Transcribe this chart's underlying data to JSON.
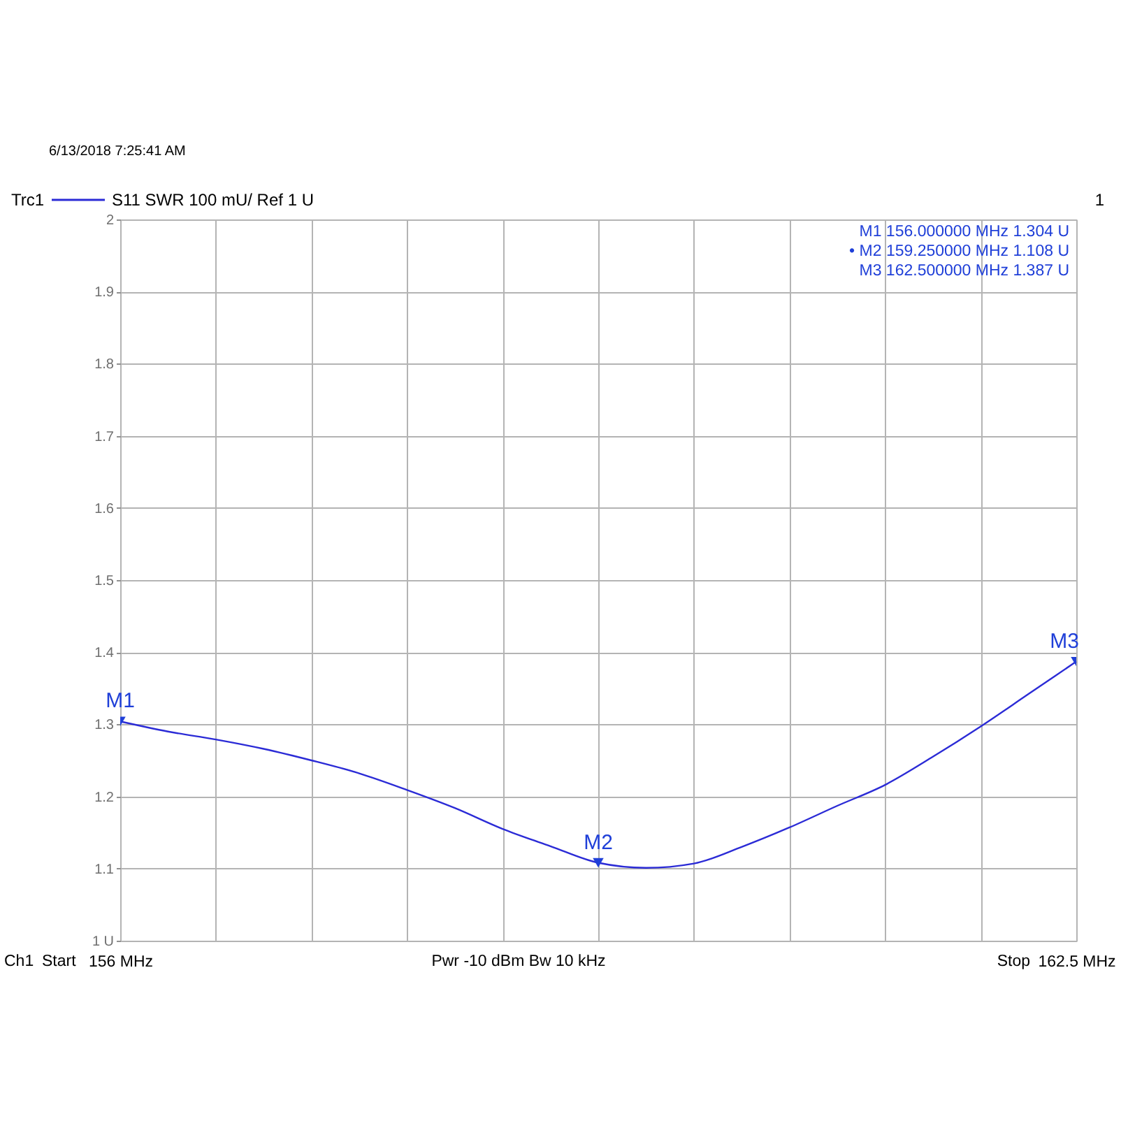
{
  "chart_data": {
    "type": "line",
    "x": [
      156.0,
      156.325,
      156.65,
      156.975,
      157.3,
      157.625,
      157.95,
      158.275,
      158.6,
      158.925,
      159.25,
      159.575,
      159.9,
      160.225,
      160.55,
      160.875,
      161.2,
      161.525,
      161.85,
      162.175,
      162.5
    ],
    "series": [
      {
        "name": "Trc1",
        "color": "#2b2bd6",
        "values": [
          1.304,
          1.29,
          1.279,
          1.266,
          1.25,
          1.232,
          1.209,
          1.184,
          1.155,
          1.131,
          1.108,
          1.101,
          1.107,
          1.13,
          1.157,
          1.187,
          1.216,
          1.255,
          1.297,
          1.342,
          1.387
        ]
      }
    ],
    "xlim": [
      156,
      162.5
    ],
    "xticks": [
      {
        "value": 156,
        "label": "156 MHz"
      },
      {
        "value": 156.65,
        "label": null
      },
      {
        "value": 157.3,
        "label": null
      },
      {
        "value": 157.95,
        "label": null
      },
      {
        "value": 158.6,
        "label": null
      },
      {
        "value": 159.25,
        "label": null
      },
      {
        "value": 159.9,
        "label": null
      },
      {
        "value": 160.55,
        "label": null
      },
      {
        "value": 161.2,
        "label": null
      },
      {
        "value": 161.85,
        "label": null
      },
      {
        "value": 162.5,
        "label": "162.5 MHz"
      }
    ],
    "ylim": [
      1,
      2
    ],
    "yticks": [
      {
        "value": 1,
        "label": "1 U"
      },
      1.1,
      1.2,
      1.3,
      1.4,
      1.5,
      1.6,
      1.7,
      1.8,
      1.9,
      2
    ],
    "grid": true,
    "legend": "top left",
    "annotations": [
      "6/13/2018 7:25:41 AM",
      "S11 SWR 100 mU/ Ref 1 U",
      "1",
      "M1 156.000000 MHz 1.304 U",
      "• M2 159.250000 MHz 1.108 U",
      "M3 162.500000 MHz 1.387 U",
      "Ch1",
      "Start",
      "Pwr -10 dBm Bw 10 kHz",
      "Stop",
      {
        "text": "M1",
        "x": 156,
        "y": 1.304
      },
      {
        "text": "M2",
        "x": 159.25,
        "y": 1.108
      },
      {
        "text": "M3",
        "x": 162.5,
        "y": 1.387
      }
    ]
  }
}
